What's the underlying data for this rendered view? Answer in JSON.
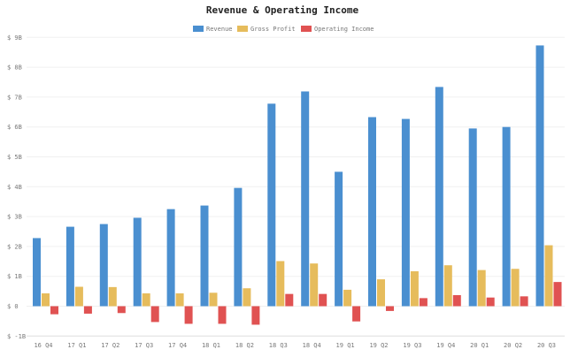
{
  "chart_data": {
    "type": "bar",
    "title": "Revenue & Operating Income",
    "xlabel": "",
    "ylabel": "",
    "ylim": [
      -1,
      9
    ],
    "yticks": [
      -1,
      0,
      1,
      2,
      3,
      4,
      5,
      6,
      7,
      8,
      9
    ],
    "ytick_labels": [
      "$ -1B",
      "$ 0",
      "$ 1B",
      "$ 2B",
      "$ 3B",
      "$ 4B",
      "$ 5B",
      "$ 6B",
      "$ 7B",
      "$ 8B",
      "$ 9B"
    ],
    "grid": true,
    "legend_position": "top-center",
    "categories": [
      "16 Q4",
      "17 Q1",
      "17 Q2",
      "17 Q3",
      "17 Q4",
      "18 Q1",
      "18 Q2",
      "18 Q3",
      "18 Q4",
      "19 Q1",
      "19 Q2",
      "19 Q3",
      "19 Q4",
      "20 Q1",
      "20 Q2",
      "20 Q3"
    ],
    "series": [
      {
        "name": "Revenue",
        "color": "#4a8fd0",
        "values": [
          2.28,
          2.66,
          2.75,
          2.96,
          3.25,
          3.37,
          3.96,
          6.78,
          7.19,
          4.5,
          6.33,
          6.27,
          7.34,
          5.95,
          6.0,
          8.73
        ]
      },
      {
        "name": "Gross Profit",
        "color": "#e6bc5c",
        "values": [
          0.43,
          0.65,
          0.64,
          0.43,
          0.43,
          0.45,
          0.6,
          1.51,
          1.43,
          0.55,
          0.9,
          1.17,
          1.37,
          1.21,
          1.25,
          2.04
        ]
      },
      {
        "name": "Operating Income",
        "color": "#e05252",
        "values": [
          -0.27,
          -0.25,
          -0.23,
          -0.53,
          -0.59,
          -0.59,
          -0.62,
          0.41,
          0.41,
          -0.51,
          -0.16,
          0.27,
          0.37,
          0.29,
          0.33,
          0.81
        ]
      }
    ]
  }
}
